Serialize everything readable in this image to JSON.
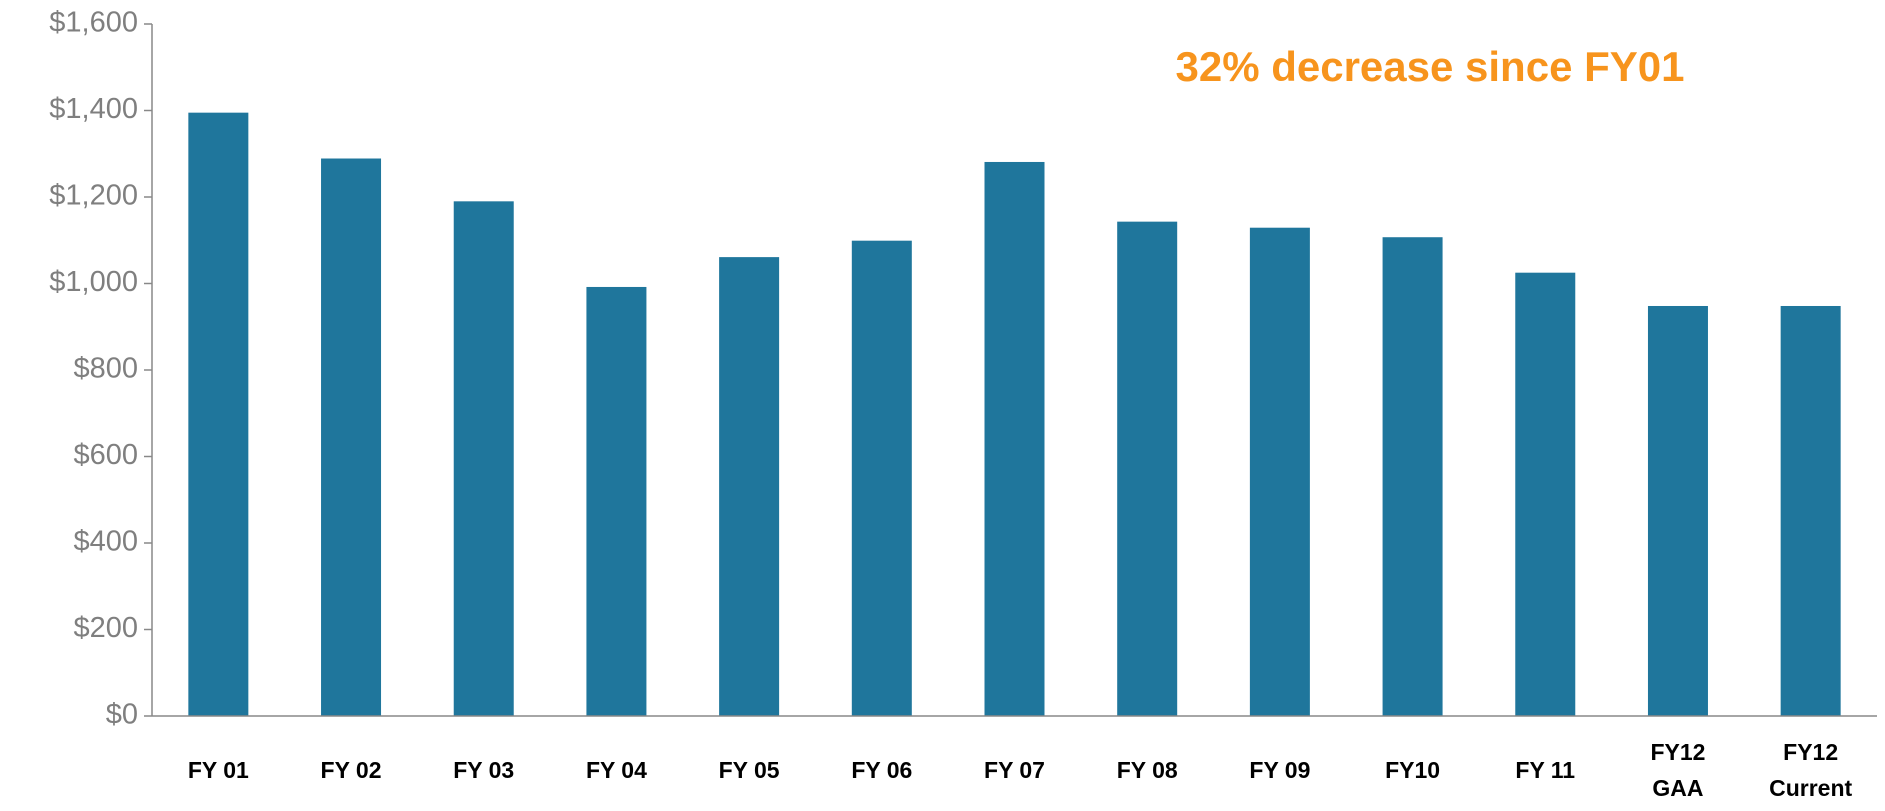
{
  "chart_data": {
    "type": "bar",
    "annotation": "32% decrease since FY01",
    "categories": [
      "FY 01",
      "FY 02",
      "FY 03",
      "FY 04",
      "FY 05",
      "FY 06",
      "FY 07",
      "FY 08",
      "FY 09",
      "FY10",
      "FY 11",
      "FY12\nGAA",
      "FY12\nCurrent"
    ],
    "values": [
      1395,
      1289,
      1190,
      992,
      1061,
      1099,
      1281,
      1143,
      1129,
      1107,
      1025,
      948,
      948
    ],
    "color": "#1f769c",
    "ylim": [
      0,
      1600
    ],
    "yticks": [
      {
        "value": 0,
        "label": "$0"
      },
      {
        "value": 200,
        "label": "$200"
      },
      {
        "value": 400,
        "label": "$400"
      },
      {
        "value": 600,
        "label": "$600"
      },
      {
        "value": 800,
        "label": "$800"
      },
      {
        "value": 1000,
        "label": "$1,000"
      },
      {
        "value": 1200,
        "label": "$1,200"
      },
      {
        "value": 1400,
        "label": "$1,400"
      },
      {
        "value": 1600,
        "label": "$1,600"
      }
    ],
    "grid": false
  }
}
